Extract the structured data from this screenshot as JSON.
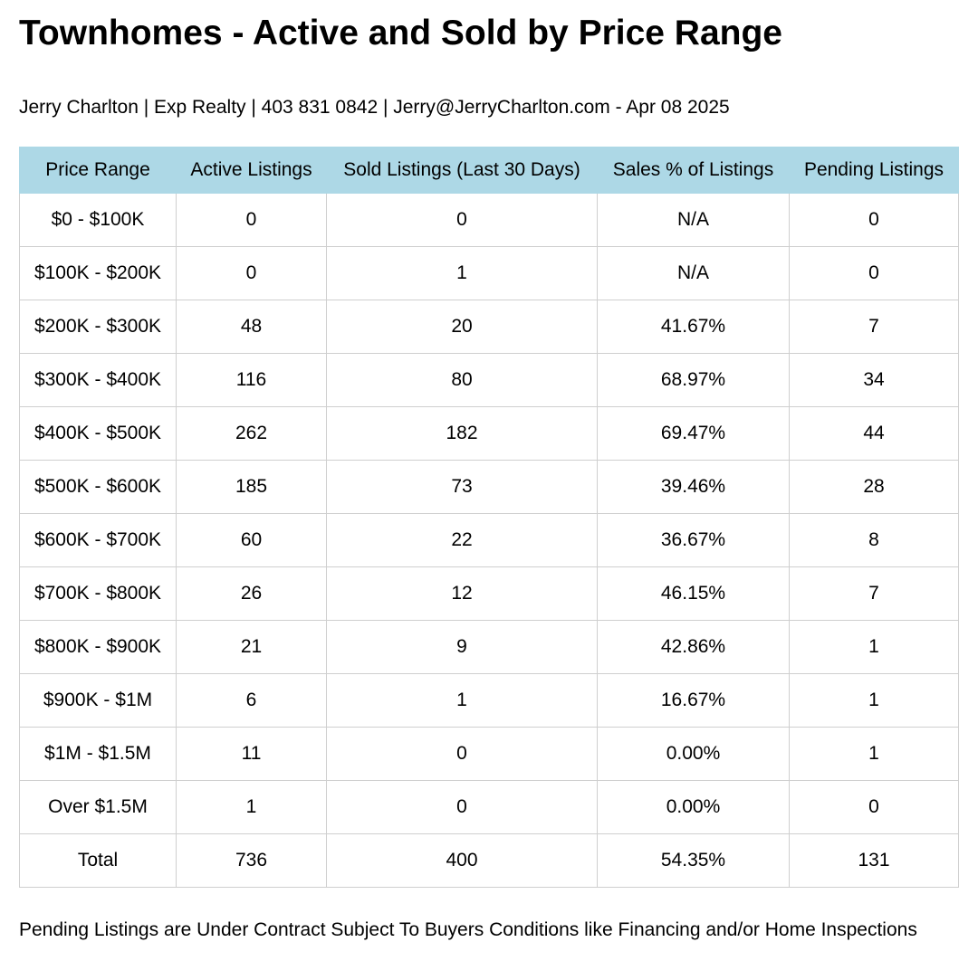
{
  "title": "Townhomes - Active and Sold by Price Range",
  "subtitle": "Jerry Charlton | Exp Realty | 403 831 0842 | Jerry@JerryCharlton.com - Apr 08 2025",
  "table": {
    "header_color": "#add8e6",
    "columns": [
      "Price Range",
      "Active Listings",
      "Sold Listings (Last 30 Days)",
      "Sales % of Listings",
      "Pending Listings"
    ],
    "rows": [
      [
        "$0 - $100K",
        "0",
        "0",
        "N/A",
        "0"
      ],
      [
        "$100K - $200K",
        "0",
        "1",
        "N/A",
        "0"
      ],
      [
        "$200K - $300K",
        "48",
        "20",
        "41.67%",
        "7"
      ],
      [
        "$300K - $400K",
        "116",
        "80",
        "68.97%",
        "34"
      ],
      [
        "$400K - $500K",
        "262",
        "182",
        "69.47%",
        "44"
      ],
      [
        "$500K - $600K",
        "185",
        "73",
        "39.46%",
        "28"
      ],
      [
        "$600K - $700K",
        "60",
        "22",
        "36.67%",
        "8"
      ],
      [
        "$700K - $800K",
        "26",
        "12",
        "46.15%",
        "7"
      ],
      [
        "$800K - $900K",
        "21",
        "9",
        "42.86%",
        "1"
      ],
      [
        "$900K - $1M",
        "6",
        "1",
        "16.67%",
        "1"
      ],
      [
        "$1M - $1.5M",
        "11",
        "0",
        "0.00%",
        "1"
      ],
      [
        "Over $1.5M",
        "1",
        "0",
        "0.00%",
        "0"
      ],
      [
        "Total",
        "736",
        "400",
        "54.35%",
        "131"
      ]
    ]
  },
  "footnote": "Pending Listings are Under Contract Subject To Buyers Conditions like Financing and/or Home Inspections"
}
